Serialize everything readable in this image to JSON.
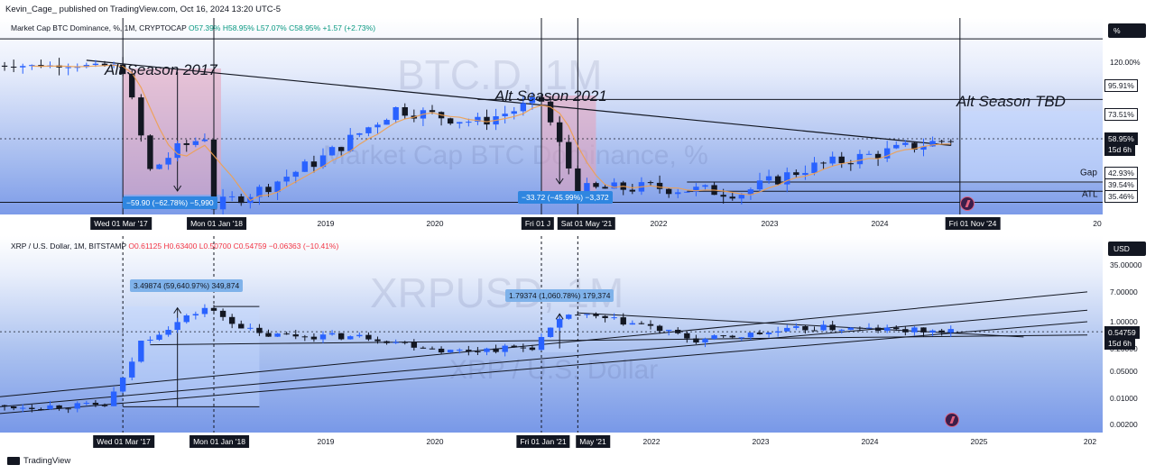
{
  "header": {
    "publisher": "Kevin_Cage_ published on TradingView.com, Oct 16, 2024 13:20 UTC-5"
  },
  "footer": {
    "brand": "TradingView"
  },
  "colors": {
    "candle_up": "#2962ff",
    "candle_down": "#131722",
    "ma_line": "#f0a050",
    "shade_pink": "#e8a0b8",
    "shade_blue": "#c6d9ff",
    "measure_blue": "#2f86e0"
  },
  "chart_data": [
    {
      "type": "candlestick",
      "symbol_line": "Market Cap BTC Dominance, %, 1M, CRYPTOCAP",
      "ohlc": {
        "open": "O57.39%",
        "high": "H58.95%",
        "low": "L57.07%",
        "close": "C58.95%",
        "change": "+1.57 (+2.73%)"
      },
      "watermark": {
        "ticker": "BTC.D, 1M",
        "name": "Market Cap BTC Dominance, %"
      },
      "unit_button": "%",
      "x_ticks": [
        "2019",
        "2020",
        "2022",
        "2023",
        "2024",
        "20"
      ],
      "x_highlight_ticks": [
        "Wed 01 Mar '17",
        "Mon 01 Jan '18",
        "Fri 01 J",
        "Sat 01 May '21",
        "Fri 01 Nov '24"
      ],
      "y_ticks": [
        "120.00%"
      ],
      "price_tags": [
        "95.91%",
        "73.51%",
        "58.95%",
        "15d 6h",
        "42.93%",
        "39.54%",
        "35.46%"
      ],
      "line_labels": [
        "Gap",
        "ATL"
      ],
      "annotations": [
        "Alt Season 2017",
        "Alt Season 2021",
        "Alt Season TBD"
      ],
      "measurements": [
        "−59.90 (−62.78%) −5,990",
        "−33.72 (−45.99%) −3,372"
      ],
      "levels": [
        95.91,
        73.51,
        42.93,
        39.54,
        35.46
      ],
      "series": [
        {
          "date": "2017-03",
          "value": 85
        },
        {
          "date": "2017-06",
          "value": 47
        },
        {
          "date": "2017-09",
          "value": 55
        },
        {
          "date": "2017-12",
          "value": 60
        },
        {
          "date": "2018-01",
          "value": 34
        },
        {
          "date": "2018-06",
          "value": 40
        },
        {
          "date": "2019-01",
          "value": 52
        },
        {
          "date": "2019-09",
          "value": 70
        },
        {
          "date": "2020-06",
          "value": 65
        },
        {
          "date": "2021-01",
          "value": 73
        },
        {
          "date": "2021-05",
          "value": 40
        },
        {
          "date": "2022-01",
          "value": 41
        },
        {
          "date": "2022-11",
          "value": 39
        },
        {
          "date": "2023-06",
          "value": 48
        },
        {
          "date": "2024-10",
          "value": 58.95
        }
      ]
    },
    {
      "type": "candlestick",
      "symbol_line": "XRP / U.S. Dollar, 1M, BITSTAMP",
      "ohlc": {
        "open": "O0.61125",
        "high": "H0.63400",
        "low": "L0.50700",
        "close": "C0.54759",
        "change": "−0.06363 (−10.41%)"
      },
      "watermark": {
        "ticker": "XRPUSD, 1M",
        "name": "XRP / U.S. Dollar"
      },
      "unit_button": "USD",
      "x_ticks": [
        "2019",
        "2020",
        "2022",
        "2023",
        "2024",
        "2025",
        "202"
      ],
      "x_highlight_ticks": [
        "Wed 01 Mar '17",
        "Mon 01 Jan '18",
        "Fri 01 Jan '21",
        "May '21"
      ],
      "y_ticks": [
        "35.00000",
        "7.00000",
        "1.00000",
        "0.20000",
        "0.05000",
        "0.01000",
        "0.00200"
      ],
      "price_tags": [
        "0.54759",
        "15d 6h"
      ],
      "measurements": [
        "3.49874 (59,640.97%) 349,874",
        "1.79374 (1,060.78%) 179,374"
      ],
      "series": [
        {
          "date": "2016-01",
          "value": 0.006
        },
        {
          "date": "2017-01",
          "value": 0.0065
        },
        {
          "date": "2017-03",
          "value": 0.03
        },
        {
          "date": "2017-05",
          "value": 0.3
        },
        {
          "date": "2017-12",
          "value": 2.3
        },
        {
          "date": "2018-06",
          "value": 0.45
        },
        {
          "date": "2019-06",
          "value": 0.4
        },
        {
          "date": "2020-03",
          "value": 0.17
        },
        {
          "date": "2020-12",
          "value": 0.22
        },
        {
          "date": "2021-04",
          "value": 1.6
        },
        {
          "date": "2021-12",
          "value": 0.83
        },
        {
          "date": "2022-06",
          "value": 0.32
        },
        {
          "date": "2023-07",
          "value": 0.7
        },
        {
          "date": "2024-10",
          "value": 0.54759
        }
      ]
    }
  ]
}
